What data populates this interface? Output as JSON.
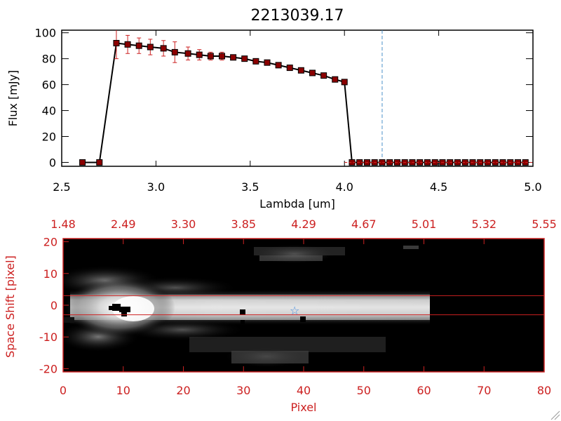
{
  "chart_data": [
    {
      "type": "line",
      "title": "2213039.17",
      "xlabel": "Lambda [um]",
      "ylabel": "Flux [mJy]",
      "xlim": [
        2.5,
        5.0
      ],
      "ylim": [
        -3,
        102
      ],
      "x_ticks": [
        "2.5",
        "3.0",
        "3.5",
        "4.0",
        "4.5",
        "5.0"
      ],
      "x_tick_values": [
        2.5,
        3.0,
        3.5,
        4.0,
        4.5,
        5.0
      ],
      "y_ticks": [
        "0",
        "20",
        "40",
        "60",
        "80",
        "100"
      ],
      "y_tick_values": [
        0,
        20,
        40,
        60,
        80,
        100
      ],
      "reference_line_x": 4.2,
      "series": [
        {
          "x": [
            2.61,
            2.7,
            2.79,
            2.85,
            2.91,
            2.97,
            3.04,
            3.1,
            3.17,
            3.23,
            3.29,
            3.35,
            3.41,
            3.47,
            3.53,
            3.59,
            3.65,
            3.71,
            3.77,
            3.83,
            3.89,
            3.95,
            4.0,
            4.04,
            4.08,
            4.12,
            4.16,
            4.2,
            4.24,
            4.28,
            4.32,
            4.36,
            4.4,
            4.44,
            4.48,
            4.52,
            4.56,
            4.6,
            4.64,
            4.68,
            4.72,
            4.76,
            4.8,
            4.84,
            4.88,
            4.92,
            4.96
          ],
          "y": [
            0,
            0,
            92,
            91,
            90,
            89,
            88,
            85,
            84,
            83,
            82,
            82,
            81,
            80,
            78,
            77,
            75,
            73,
            71,
            69,
            67,
            64,
            62,
            0,
            0,
            0,
            0,
            0,
            0,
            0,
            0,
            0,
            0,
            0,
            0,
            0,
            0,
            0,
            0,
            0,
            0,
            0,
            0,
            0,
            0,
            0,
            0
          ],
          "err": [
            0,
            0,
            12,
            7,
            6,
            6,
            6,
            8,
            5,
            4,
            3,
            3,
            2,
            2,
            2,
            1,
            1,
            1,
            1,
            1,
            1,
            1,
            1,
            0,
            0,
            0,
            0,
            0,
            0,
            0,
            0,
            0,
            0,
            0,
            0,
            0,
            0,
            0,
            0,
            0,
            0,
            0,
            0,
            0,
            0,
            0,
            0
          ]
        }
      ]
    },
    {
      "type": "heatmap",
      "xlabel": "Pixel",
      "ylabel": "Space Shift [pixel]",
      "xlim": [
        0,
        80
      ],
      "ylim": [
        -21,
        21
      ],
      "x_ticks": [
        "0",
        "10",
        "20",
        "30",
        "40",
        "50",
        "60",
        "70",
        "80"
      ],
      "x_tick_values": [
        0,
        10,
        20,
        30,
        40,
        50,
        60,
        70,
        80
      ],
      "y_ticks": [
        "20",
        "10",
        "0",
        "-10",
        "-20"
      ],
      "y_tick_values": [
        20,
        10,
        0,
        -10,
        -20
      ],
      "top_axis_ticks": [
        "1.48",
        "2.49",
        "3.30",
        "3.85",
        "4.29",
        "4.67",
        "5.01",
        "5.32",
        "5.55"
      ],
      "aperture_lines": [
        3,
        -3
      ],
      "star_marker": {
        "x": 38.5,
        "y": -1.5
      },
      "brightest_spot": {
        "x": 11,
        "y": -1.5
      },
      "spectral_trace": {
        "y_center": -1,
        "x_end": 62
      },
      "colormap": "grayscale"
    }
  ],
  "colors": {
    "axis": "#000000",
    "data_marker": "#8b0000",
    "error_bar": "#cc2020",
    "reference_line": "#4a90c8",
    "accent_red": "#cc2020",
    "star": "#4a90e2",
    "image_background": "#000000"
  }
}
